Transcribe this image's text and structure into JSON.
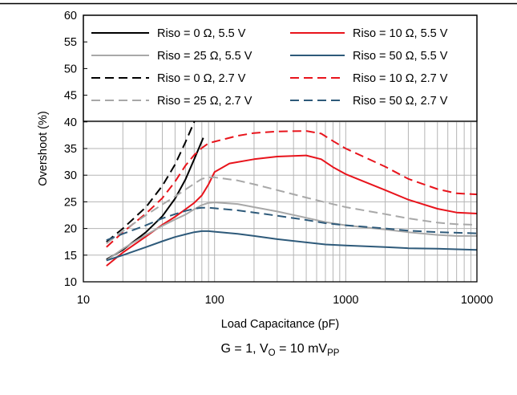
{
  "chart_data": {
    "type": "line",
    "xlabel": "Load Capacitance (pF)",
    "ylabel": "Overshoot (%)",
    "x_scale": "log",
    "xlim": [
      10,
      10000
    ],
    "ylim": [
      10,
      60
    ],
    "x_ticks": [
      10,
      100,
      1000,
      10000
    ],
    "x_tick_labels": [
      "10",
      "100",
      "1000",
      "10000"
    ],
    "y_ticks": [
      10,
      15,
      20,
      25,
      30,
      35,
      40,
      45,
      50,
      55,
      60
    ],
    "y_tick_labels": [
      "10",
      "15",
      "20",
      "25",
      "30",
      "35",
      "40",
      "45",
      "50",
      "55",
      "60"
    ],
    "grid": true,
    "legend_position": "top",
    "caption": {
      "main": "G = 1, V",
      "sub1": "O",
      "mid": " = 10 mV",
      "sub2": "PP"
    },
    "series": [
      {
        "name": "Riso = 0 Ω, 5.5 V",
        "color": "#000000",
        "dash": "solid",
        "x": [
          15,
          20,
          30,
          40,
          50,
          60,
          70,
          82
        ],
        "y": [
          14.2,
          16.0,
          19.3,
          22.3,
          25.6,
          29.2,
          33.0,
          37.0
        ]
      },
      {
        "name": "Riso = 10 Ω, 5.5 V",
        "color": "#e8141c",
        "dash": "solid",
        "x": [
          15,
          20,
          30,
          40,
          50,
          60,
          70,
          80,
          90,
          100,
          130,
          200,
          300,
          500,
          650,
          800,
          1000,
          2000,
          3000,
          5000,
          7000,
          10000
        ],
        "y": [
          13.0,
          15.5,
          18.5,
          20.7,
          22.2,
          23.6,
          24.8,
          26.2,
          28.3,
          30.6,
          32.2,
          33.0,
          33.5,
          33.7,
          33.0,
          31.5,
          30.2,
          27.2,
          25.4,
          23.7,
          23.0,
          22.8
        ]
      },
      {
        "name": "Riso = 25 Ω, 5.5 V",
        "color": "#a8a8a8",
        "dash": "solid",
        "x": [
          15,
          20,
          30,
          40,
          50,
          60,
          70,
          80,
          90,
          100,
          150,
          200,
          300,
          500,
          700,
          1000,
          2000,
          3000,
          5000,
          7000,
          10000
        ],
        "y": [
          14.0,
          16.2,
          18.8,
          20.5,
          21.7,
          22.6,
          23.6,
          24.4,
          24.8,
          24.9,
          24.6,
          24.0,
          23.2,
          22.0,
          21.2,
          20.6,
          19.8,
          19.3,
          18.8,
          18.6,
          18.6
        ]
      },
      {
        "name": "Riso = 50 Ω, 5.5 V",
        "color": "#2e5a7a",
        "dash": "solid",
        "x": [
          15,
          20,
          30,
          40,
          50,
          60,
          70,
          80,
          90,
          100,
          150,
          200,
          300,
          500,
          700,
          1000,
          2000,
          3000,
          5000,
          7000,
          10000
        ],
        "y": [
          14.0,
          15.0,
          16.5,
          17.6,
          18.4,
          18.9,
          19.3,
          19.5,
          19.5,
          19.4,
          19.0,
          18.6,
          18.0,
          17.4,
          17.0,
          16.8,
          16.5,
          16.3,
          16.2,
          16.1,
          16.0
        ]
      },
      {
        "name": "Riso = 0 Ω, 2.7 V",
        "color": "#000000",
        "dash": "dashed",
        "x": [
          15,
          20,
          30,
          40,
          50,
          60,
          70,
          80
        ],
        "y": [
          17.5,
          20.0,
          24.0,
          28.0,
          32.0,
          36.2,
          40.0,
          43.0
        ]
      },
      {
        "name": "Riso = 10 Ω, 2.7 V",
        "color": "#e8141c",
        "dash": "dashed",
        "x": [
          15,
          20,
          30,
          40,
          50,
          60,
          70,
          80,
          90,
          100,
          150,
          200,
          300,
          500,
          650,
          800,
          1000,
          2000,
          3000,
          5000,
          7000,
          10000
        ],
        "y": [
          16.5,
          19.3,
          22.8,
          25.7,
          28.8,
          31.8,
          33.8,
          35.1,
          36.0,
          36.3,
          37.4,
          37.9,
          38.2,
          38.3,
          37.8,
          36.4,
          35.0,
          31.6,
          29.3,
          27.4,
          26.6,
          26.4
        ]
      },
      {
        "name": "Riso = 25 Ω, 2.7 V",
        "color": "#a8a8a8",
        "dash": "dashed",
        "x": [
          15,
          20,
          30,
          40,
          50,
          60,
          70,
          80,
          90,
          100,
          150,
          200,
          300,
          500,
          700,
          1000,
          2000,
          3000,
          5000,
          7000,
          10000
        ],
        "y": [
          17.2,
          19.5,
          22.5,
          24.5,
          26.0,
          27.3,
          28.4,
          29.3,
          29.6,
          29.6,
          29.0,
          28.3,
          27.2,
          25.8,
          24.9,
          24.0,
          22.7,
          21.9,
          21.1,
          20.8,
          20.7
        ]
      },
      {
        "name": "Riso = 50 Ω, 2.7 V",
        "color": "#2e5a7a",
        "dash": "dashed",
        "x": [
          15,
          20,
          30,
          40,
          50,
          60,
          70,
          80,
          90,
          100,
          150,
          200,
          300,
          500,
          700,
          1000,
          2000,
          3000,
          5000,
          7000,
          10000
        ],
        "y": [
          17.8,
          19.0,
          20.6,
          21.9,
          22.7,
          23.3,
          23.7,
          23.9,
          23.9,
          23.8,
          23.4,
          23.0,
          22.4,
          21.6,
          21.0,
          20.6,
          20.0,
          19.6,
          19.3,
          19.2,
          19.1
        ]
      }
    ]
  }
}
